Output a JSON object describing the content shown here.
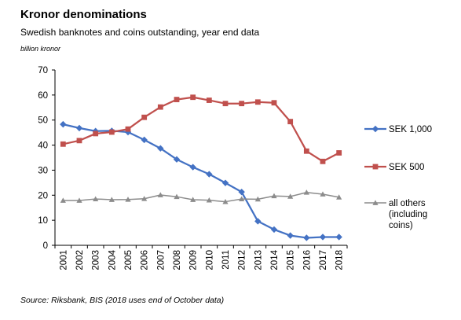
{
  "title": "Kronor denominations",
  "subtitle": "Swedish banknotes and coins outstanding, year end data",
  "unit_label": "billion kronor",
  "source": "Source: Riksbank, BIS (2018 uses end of October data)",
  "chart_data": {
    "type": "line",
    "title": "Kronor denominations",
    "subtitle": "Swedish banknotes and coins outstanding, year end data",
    "ylabel": "billion kronor",
    "xlabel": "",
    "ylim": [
      0,
      70
    ],
    "yticks": [
      "0",
      "10",
      "20",
      "30",
      "40",
      "50",
      "60",
      "70"
    ],
    "x": [
      "2001",
      "2002",
      "2003",
      "2004",
      "2005",
      "2006",
      "2007",
      "2008",
      "2009",
      "2010",
      "2011",
      "2012",
      "2013",
      "2014",
      "2015",
      "2016",
      "2017",
      "2018"
    ],
    "grid": false,
    "legend_position": "right",
    "series": [
      {
        "name": "SEK 1,000",
        "color": "#4472c4",
        "marker": "diamond",
        "values": [
          48.3,
          46.8,
          45.6,
          45.7,
          45.2,
          42.1,
          38.7,
          34.3,
          31.2,
          28.4,
          24.9,
          21.3,
          9.6,
          6.3,
          3.9,
          3.0,
          3.3,
          3.3
        ]
      },
      {
        "name": "SEK 500",
        "color": "#c0504d",
        "marker": "square",
        "values": [
          40.4,
          41.8,
          44.6,
          45.2,
          46.4,
          51.1,
          55.2,
          58.2,
          59.1,
          57.9,
          56.6,
          56.6,
          57.2,
          56.9,
          49.4,
          37.6,
          33.5,
          36.9
        ]
      },
      {
        "name": "all others\n(including\ncoins)",
        "color": "#8c8c8c",
        "marker": "triangle",
        "values": [
          17.9,
          17.9,
          18.5,
          18.2,
          18.3,
          18.6,
          20.1,
          19.4,
          18.2,
          18.0,
          17.4,
          18.5,
          18.4,
          19.7,
          19.5,
          21.1,
          20.4,
          19.2
        ]
      }
    ]
  }
}
